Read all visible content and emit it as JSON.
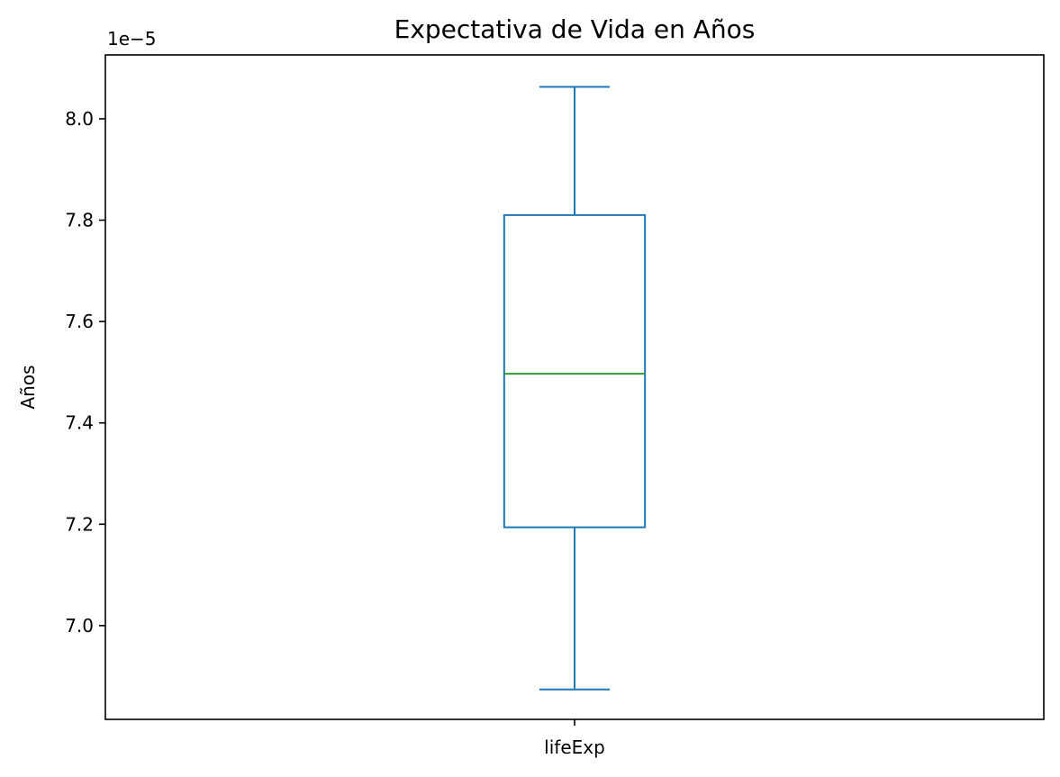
{
  "chart_data": {
    "type": "box",
    "title": "Expectativa de Vida en Años",
    "ylabel": "Años",
    "y_offset_label": "1e−5",
    "categories": [
      "lifeExp"
    ],
    "y_ticks": [
      {
        "value": 7.0,
        "label": "7.0"
      },
      {
        "value": 7.2,
        "label": "7.2"
      },
      {
        "value": 7.4,
        "label": "7.4"
      },
      {
        "value": 7.6,
        "label": "7.6"
      },
      {
        "value": 7.8,
        "label": "7.8"
      },
      {
        "value": 8.0,
        "label": "8.0"
      }
    ],
    "ylim": [
      6.815,
      8.126
    ],
    "y_scale_exponent": -5,
    "boxes": [
      {
        "category": "lifeExp",
        "whisker_low": 6.874,
        "q1": 7.194,
        "median": 7.497,
        "q3": 7.81,
        "whisker_high": 8.063
      }
    ],
    "colors": {
      "box": "#1f77b4",
      "median": "#2ca02c",
      "axes": "#000000"
    },
    "grid": false,
    "legend": "none"
  }
}
